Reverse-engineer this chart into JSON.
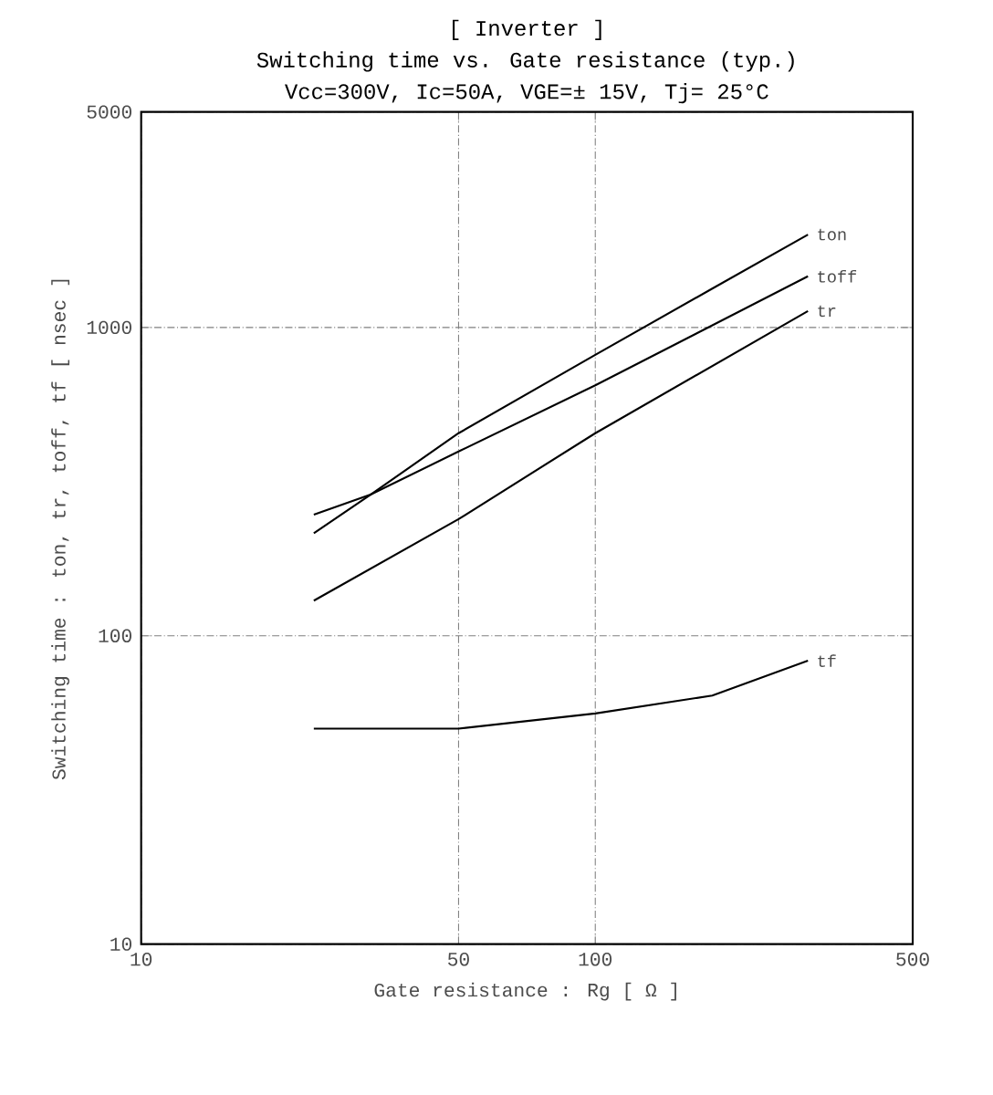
{
  "chart_data": {
    "type": "line",
    "title": "[ Inverter ]",
    "subtitle": "Switching time  vs.  Gate resistance  (typ.)",
    "annotations": [
      "Vcc=300V, Ic=50A, VGE=± 15V, Tj= 25°C"
    ],
    "xlabel": "Gate resistance  :  Rg  [ Ω ]",
    "ylabel": "Switching time  :  ton, tr, toff, tf  [ nsec ]",
    "log": "xy",
    "xlim": [
      10,
      500
    ],
    "ylim": [
      10,
      5000
    ],
    "xticks": [
      10,
      50,
      100,
      500
    ],
    "yticks": [
      10,
      100,
      1000,
      5000
    ],
    "grid": true,
    "line_style": "solid",
    "marker": "none",
    "series": [
      {
        "name": "ton",
        "color": "#000000",
        "x": [
          24,
          32,
          50,
          100,
          181,
          294
        ],
        "values": [
          215,
          287,
          454,
          815,
          1337,
          2000
        ]
      },
      {
        "name": "toff",
        "color": "#000000",
        "x": [
          24,
          32,
          50,
          100,
          294
        ],
        "values": [
          247,
          287,
          396,
          649,
          1465
        ]
      },
      {
        "name": "tr",
        "color": "#000000",
        "x": [
          24,
          50,
          100,
          294
        ],
        "values": [
          130,
          239,
          454,
          1130
        ]
      },
      {
        "name": "tf",
        "color": "#000000",
        "x": [
          24,
          50,
          100,
          181,
          294
        ],
        "values": [
          50,
          50,
          56,
          64,
          83
        ]
      }
    ]
  }
}
